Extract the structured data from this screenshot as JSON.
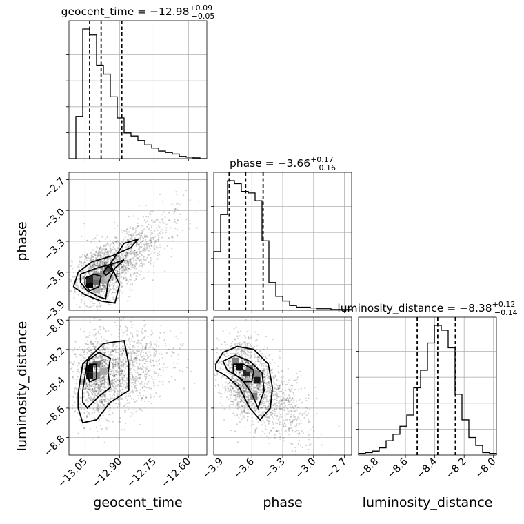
{
  "chart_data": {
    "type": "corner",
    "parameters": [
      "geocent_time",
      "phase",
      "luminosity_distance"
    ],
    "axis_labels": [
      "geocent_time",
      "phase",
      "luminosity_distance"
    ],
    "grid": true,
    "titles": [
      {
        "prefix": "geocent_time = ",
        "value": "−12.98",
        "upper": "+0.09",
        "lower": "−0.05"
      },
      {
        "prefix": "phase = ",
        "value": "−3.66",
        "upper": "+0.17",
        "lower": "−0.16"
      },
      {
        "prefix": "luminosity_distance = ",
        "value": "−8.38",
        "upper": "+0.12",
        "lower": "−0.14"
      }
    ],
    "ranges": [
      [
        -13.12,
        -12.52
      ],
      [
        -3.97,
        -2.63
      ],
      [
        -8.92,
        -7.98
      ]
    ],
    "ticks": [
      [
        -13.05,
        -12.9,
        -12.75,
        -12.6
      ],
      [
        -3.9,
        -3.6,
        -3.3,
        -3.0,
        -2.7
      ],
      [
        -8.8,
        -8.6,
        -8.4,
        -8.2,
        -8.0
      ]
    ],
    "tick_labels": [
      [
        "−13.05",
        "−12.90",
        "−12.75",
        "−12.60"
      ],
      [
        "−3.9",
        "−3.6",
        "−3.3",
        "−3.0",
        "−2.7"
      ],
      [
        "−8.8",
        "−8.6",
        "−8.4",
        "−8.2",
        "−8.0"
      ]
    ],
    "quantiles": [
      [
        -13.03,
        -12.98,
        -12.89
      ],
      [
        -3.82,
        -3.66,
        -3.49
      ],
      [
        -8.52,
        -8.38,
        -8.26
      ]
    ],
    "histograms": [
      {
        "edges": [
          -13.12,
          -13.09,
          -13.06,
          -13.03,
          -13.0,
          -12.97,
          -12.94,
          -12.91,
          -12.88,
          -12.85,
          -12.82,
          -12.79,
          -12.76,
          -12.73,
          -12.7,
          -12.67,
          -12.64,
          -12.61,
          -12.58,
          -12.55,
          -12.52
        ],
        "counts": [
          0,
          0.28,
          0.86,
          0.82,
          0.62,
          0.56,
          0.41,
          0.27,
          0.17,
          0.15,
          0.12,
          0.09,
          0.07,
          0.05,
          0.04,
          0.03,
          0.015,
          0.01,
          0.005,
          0
        ]
      },
      {
        "edges": [
          -3.97,
          -3.903,
          -3.836,
          -3.769,
          -3.702,
          -3.635,
          -3.568,
          -3.501,
          -3.434,
          -3.367,
          -3.3,
          -3.233,
          -3.166,
          -3.099,
          -3.032,
          -2.965,
          -2.898,
          -2.831,
          -2.764,
          -2.697,
          -2.63
        ],
        "counts": [
          0.38,
          0.62,
          0.84,
          0.82,
          0.77,
          0.76,
          0.71,
          0.45,
          0.18,
          0.09,
          0.06,
          0.03,
          0.02,
          0.02,
          0.015,
          0.01,
          0.01,
          0.005,
          0.005,
          0.005
        ]
      },
      {
        "edges": [
          -8.92,
          -8.873,
          -8.826,
          -8.779,
          -8.732,
          -8.685,
          -8.638,
          -8.591,
          -8.544,
          -8.497,
          -8.45,
          -8.403,
          -8.356,
          -8.309,
          -8.262,
          -8.215,
          -8.168,
          -8.121,
          -8.074,
          -8.027,
          -7.98
        ],
        "counts": [
          0.01,
          0.015,
          0.025,
          0.045,
          0.09,
          0.13,
          0.18,
          0.25,
          0.42,
          0.53,
          0.7,
          0.81,
          0.78,
          0.67,
          0.38,
          0.22,
          0.11,
          0.06,
          0.015,
          0.01
        ]
      }
    ],
    "pairs": [
      {
        "x": 0,
        "y": 1,
        "center": [
          -13.03,
          -3.72
        ],
        "cells": [
          {
            "x": -13.03,
            "y": -3.72,
            "level": 1.0
          },
          {
            "x": -13.03,
            "y": -3.67,
            "level": 0.85
          },
          {
            "x": -13.0,
            "y": -3.69,
            "level": 0.6
          },
          {
            "x": -13.0,
            "y": -3.64,
            "level": 0.5
          },
          {
            "x": -12.97,
            "y": -3.62,
            "level": 0.45
          },
          {
            "x": -12.95,
            "y": -3.56,
            "level": 0.7
          },
          {
            "x": -12.97,
            "y": -3.68,
            "level": 0.35
          },
          {
            "x": -13.0,
            "y": -3.77,
            "level": 0.3
          },
          {
            "x": -12.95,
            "y": -3.65,
            "level": 0.25
          }
        ],
        "contours": [
          [
            [
              -13.08,
              -3.6
            ],
            [
              -13.02,
              -3.5
            ],
            [
              -12.93,
              -3.44
            ],
            [
              -12.85,
              -3.36
            ],
            [
              -12.82,
              -3.28
            ],
            [
              -12.88,
              -3.32
            ],
            [
              -12.94,
              -3.52
            ],
            [
              -12.9,
              -3.72
            ],
            [
              -12.92,
              -3.9
            ],
            [
              -12.98,
              -3.88
            ],
            [
              -13.05,
              -3.82
            ],
            [
              -13.1,
              -3.74
            ],
            [
              -13.08,
              -3.6
            ]
          ],
          [
            [
              -13.07,
              -3.62
            ],
            [
              -13.0,
              -3.56
            ],
            [
              -12.93,
              -3.52
            ],
            [
              -12.88,
              -3.48
            ],
            [
              -12.92,
              -3.56
            ],
            [
              -12.95,
              -3.7
            ],
            [
              -12.96,
              -3.86
            ],
            [
              -12.99,
              -3.84
            ],
            [
              -13.04,
              -3.78
            ],
            [
              -13.07,
              -3.7
            ],
            [
              -13.07,
              -3.62
            ]
          ],
          [
            [
              -13.05,
              -3.66
            ],
            [
              -13.01,
              -3.62
            ],
            [
              -12.98,
              -3.64
            ],
            [
              -12.99,
              -3.74
            ],
            [
              -13.03,
              -3.78
            ],
            [
              -13.05,
              -3.72
            ],
            [
              -13.05,
              -3.66
            ]
          ],
          [
            [
              -12.97,
              -3.6
            ],
            [
              -12.95,
              -3.54
            ],
            [
              -12.93,
              -3.58
            ],
            [
              -12.96,
              -3.63
            ],
            [
              -12.97,
              -3.6
            ]
          ]
        ],
        "scatter": {
          "n": 1800,
          "seed": 11,
          "spread": [
            0.08,
            0.14
          ],
          "trend": [
            -12.95,
            -3.6,
            1.7
          ]
        }
      },
      {
        "x": 0,
        "y": 2,
        "center": [
          -13.03,
          -8.34
        ],
        "cells": [
          {
            "x": -13.03,
            "y": -8.33,
            "level": 0.95
          },
          {
            "x": -13.03,
            "y": -8.38,
            "level": 0.9
          },
          {
            "x": -13.0,
            "y": -8.3,
            "level": 0.55
          },
          {
            "x": -13.0,
            "y": -8.38,
            "level": 0.45
          },
          {
            "x": -12.97,
            "y": -8.35,
            "level": 0.35
          },
          {
            "x": -13.06,
            "y": -8.42,
            "level": 0.3
          }
        ],
        "contours": [
          [
            [
              -13.08,
              -8.5
            ],
            [
              -13.06,
              -8.3
            ],
            [
              -12.97,
              -8.16
            ],
            [
              -12.88,
              -8.14
            ],
            [
              -12.86,
              -8.3
            ],
            [
              -12.86,
              -8.48
            ],
            [
              -12.94,
              -8.56
            ],
            [
              -13.0,
              -8.68
            ],
            [
              -13.06,
              -8.7
            ],
            [
              -13.08,
              -8.6
            ],
            [
              -13.08,
              -8.5
            ]
          ],
          [
            [
              -13.06,
              -8.48
            ],
            [
              -13.04,
              -8.28
            ],
            [
              -12.99,
              -8.22
            ],
            [
              -12.94,
              -8.26
            ],
            [
              -12.95,
              -8.36
            ],
            [
              -12.94,
              -8.46
            ],
            [
              -12.99,
              -8.52
            ],
            [
              -13.04,
              -8.6
            ],
            [
              -13.06,
              -8.56
            ],
            [
              -13.06,
              -8.48
            ]
          ],
          [
            [
              -13.04,
              -8.38
            ],
            [
              -13.03,
              -8.3
            ],
            [
              -13.0,
              -8.3
            ],
            [
              -13.0,
              -8.4
            ],
            [
              -13.03,
              -8.42
            ],
            [
              -13.04,
              -8.38
            ]
          ]
        ],
        "scatter": {
          "n": 1800,
          "seed": 23,
          "spread": [
            0.08,
            0.14
          ],
          "trend": [
            -12.96,
            -8.38,
            0.35
          ]
        }
      },
      {
        "x": 1,
        "y": 2,
        "center": [
          -3.66,
          -8.38
        ],
        "cells": [
          {
            "x": -3.72,
            "y": -8.32,
            "level": 0.95
          },
          {
            "x": -3.65,
            "y": -8.36,
            "level": 0.85
          },
          {
            "x": -3.55,
            "y": -8.41,
            "level": 0.9
          },
          {
            "x": -3.76,
            "y": -8.28,
            "level": 0.5
          },
          {
            "x": -3.62,
            "y": -8.33,
            "level": 0.55
          },
          {
            "x": -3.55,
            "y": -8.36,
            "level": 0.45
          },
          {
            "x": -3.66,
            "y": -8.42,
            "level": 0.35
          },
          {
            "x": -3.58,
            "y": -8.52,
            "level": 0.5
          }
        ],
        "contours": [
          [
            [
              -3.95,
              -8.3
            ],
            [
              -3.88,
              -8.22
            ],
            [
              -3.74,
              -8.18
            ],
            [
              -3.58,
              -8.2
            ],
            [
              -3.44,
              -8.3
            ],
            [
              -3.4,
              -8.46
            ],
            [
              -3.42,
              -8.6
            ],
            [
              -3.52,
              -8.68
            ],
            [
              -3.62,
              -8.6
            ],
            [
              -3.72,
              -8.46
            ],
            [
              -3.85,
              -8.38
            ],
            [
              -3.95,
              -8.34
            ],
            [
              -3.95,
              -8.3
            ]
          ],
          [
            [
              -3.88,
              -8.28
            ],
            [
              -3.76,
              -8.24
            ],
            [
              -3.62,
              -8.28
            ],
            [
              -3.5,
              -8.36
            ],
            [
              -3.48,
              -8.48
            ],
            [
              -3.54,
              -8.6
            ],
            [
              -3.6,
              -8.5
            ],
            [
              -3.7,
              -8.4
            ],
            [
              -3.84,
              -8.34
            ],
            [
              -3.88,
              -8.28
            ]
          ],
          [
            [
              -3.78,
              -8.3
            ],
            [
              -3.68,
              -8.3
            ],
            [
              -3.58,
              -8.34
            ],
            [
              -3.6,
              -8.42
            ],
            [
              -3.68,
              -8.42
            ],
            [
              -3.78,
              -8.36
            ],
            [
              -3.78,
              -8.3
            ]
          ]
        ],
        "scatter": {
          "n": 1800,
          "seed": 37,
          "spread": [
            0.16,
            0.13
          ],
          "trend": [
            -3.62,
            -8.4,
            -0.55
          ]
        }
      }
    ]
  }
}
